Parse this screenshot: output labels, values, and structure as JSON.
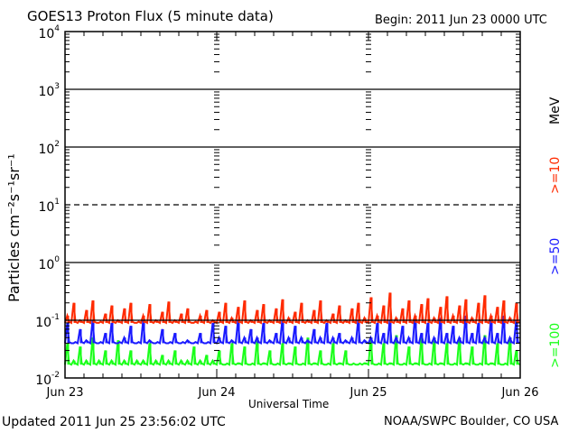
{
  "chart_data": {
    "type": "line",
    "title": "GOES13 Proton Flux (5 minute data)",
    "begin_label": "Begin: 2011 Jun 23 0000 UTC",
    "xlabel": "Universal Time",
    "ylabel": "Particles cm⁻²s⁻¹sr⁻¹",
    "yscale": "log",
    "ylim": [
      0.01,
      10000
    ],
    "ytick_labels": [
      {
        "base": "10",
        "exp": "4",
        "value": 10000
      },
      {
        "base": "10",
        "exp": "3",
        "value": 1000
      },
      {
        "base": "10",
        "exp": "2",
        "value": 100
      },
      {
        "base": "10",
        "exp": "1",
        "value": 10
      },
      {
        "base": "10",
        "exp": "0",
        "value": 1
      },
      {
        "base": "10",
        "exp": "-1",
        "value": 0.1
      },
      {
        "base": "10",
        "exp": "-2",
        "value": 0.01
      }
    ],
    "xlim_hours": [
      0,
      72
    ],
    "xtick_labels": [
      "Jun 23",
      "Jun 24",
      "Jun 25",
      "Jun 26"
    ],
    "threshold_dashed": 10,
    "units_label": "MeV",
    "grid": true,
    "series": [
      {
        "name": ">=10",
        "color": "#ff2a00",
        "values": [
          0.12,
          0.2,
          0.1,
          0.15,
          0.22,
          0.09,
          0.13,
          0.18,
          0.1,
          0.16,
          0.2,
          0.09,
          0.12,
          0.19,
          0.1,
          0.14,
          0.21,
          0.1,
          0.13,
          0.16,
          0.09,
          0.12,
          0.15,
          0.1,
          0.14,
          0.2,
          0.11,
          0.17,
          0.22,
          0.1,
          0.15,
          0.19,
          0.1,
          0.16,
          0.23,
          0.11,
          0.14,
          0.2,
          0.1,
          0.15,
          0.22,
          0.1,
          0.13,
          0.18,
          0.1,
          0.16,
          0.2,
          0.11,
          0.25,
          0.12,
          0.18,
          0.3,
          0.11,
          0.16,
          0.22,
          0.12,
          0.19,
          0.24,
          0.11,
          0.17,
          0.26,
          0.12,
          0.18,
          0.23,
          0.11,
          0.2,
          0.27,
          0.12,
          0.17,
          0.22,
          0.11,
          0.2
        ]
      },
      {
        "name": ">=50",
        "color": "#1a1aff",
        "values": [
          0.09,
          0.04,
          0.07,
          0.045,
          0.1,
          0.04,
          0.06,
          0.09,
          0.04,
          0.05,
          0.08,
          0.04,
          0.1,
          0.045,
          0.04,
          0.07,
          0.04,
          0.06,
          0.04,
          0.045,
          0.04,
          0.06,
          0.04,
          0.09,
          0.05,
          0.08,
          0.045,
          0.1,
          0.05,
          0.07,
          0.05,
          0.09,
          0.045,
          0.06,
          0.1,
          0.05,
          0.08,
          0.05,
          0.045,
          0.07,
          0.05,
          0.09,
          0.05,
          0.06,
          0.045,
          0.05,
          0.1,
          0.045,
          0.05,
          0.09,
          0.06,
          0.1,
          0.05,
          0.08,
          0.05,
          0.12,
          0.06,
          0.09,
          0.05,
          0.11,
          0.06,
          0.08,
          0.05,
          0.12,
          0.06,
          0.09,
          0.05,
          0.1,
          0.06,
          0.12,
          0.05,
          0.1
        ]
      },
      {
        "name": ">=100",
        "color": "#1aff1a",
        "values": [
          0.04,
          0.02,
          0.035,
          0.02,
          0.05,
          0.02,
          0.03,
          0.02,
          0.045,
          0.02,
          0.03,
          0.02,
          0.02,
          0.04,
          0.02,
          0.025,
          0.02,
          0.03,
          0.02,
          0.02,
          0.035,
          0.02,
          0.025,
          0.02,
          0.03,
          0.017,
          0.04,
          0.018,
          0.035,
          0.017,
          0.045,
          0.018,
          0.03,
          0.017,
          0.04,
          0.018,
          0.035,
          0.017,
          0.05,
          0.018,
          0.03,
          0.017,
          0.04,
          0.018,
          0.03,
          0.017,
          0.017,
          0.018,
          0.05,
          0.017,
          0.04,
          0.018,
          0.055,
          0.017,
          0.035,
          0.018,
          0.05,
          0.017,
          0.045,
          0.018,
          0.04,
          0.017,
          0.05,
          0.018,
          0.035,
          0.017,
          0.055,
          0.018,
          0.04,
          0.017,
          0.05,
          0.03
        ]
      }
    ]
  },
  "footer": {
    "updated": "Updated 2011 Jun 25 23:56:02 UTC",
    "source": "NOAA/SWPC Boulder, CO USA"
  }
}
